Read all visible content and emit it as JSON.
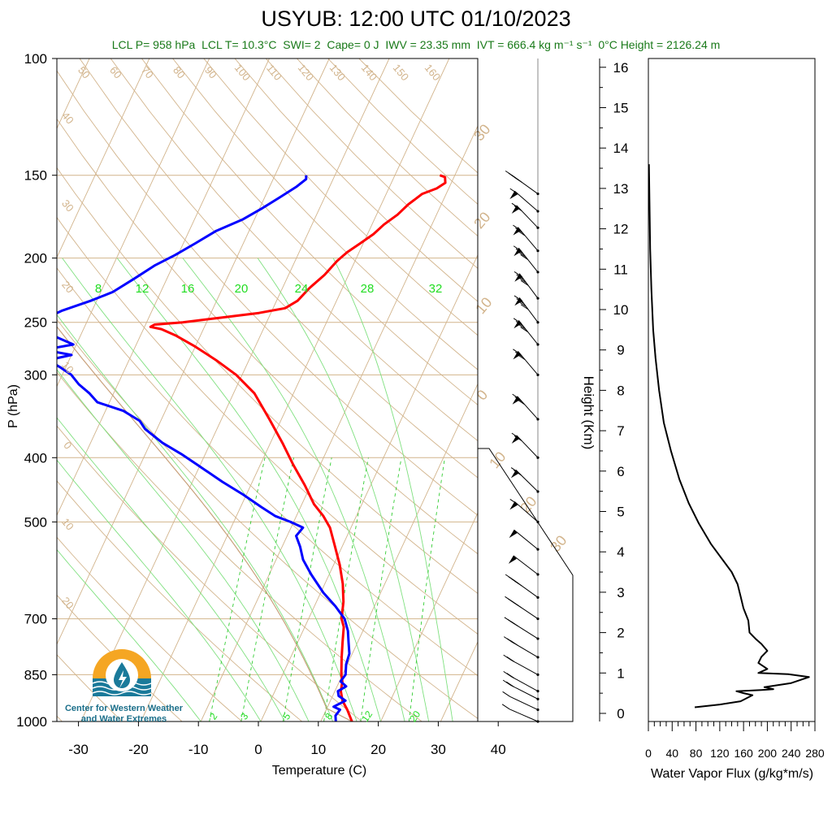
{
  "title": "USYUB: 12:00 UTC 01/10/2023",
  "subtitle": {
    "lcl_p": "LCL P= 958 hPa",
    "lcl_t": "LCL T= 10.3°C",
    "swi": "SWI= 2",
    "cape": "Cape= 0 J",
    "iwv": "IWV = 23.35 mm",
    "ivt": "IVT = 666.4 kg m⁻¹ s⁻¹",
    "zero_height": "0°C Height = 2126.24 m"
  },
  "logo": {
    "line1": "Center for Western Weather",
    "line2": "and Water Extremes",
    "icon": "water-drop-icon"
  },
  "colors": {
    "temperature": "#ff0000",
    "dewpoint": "#0000ff",
    "dry_adiabat": "#d2b48c",
    "moist_adiabat": "#7fe07f",
    "mixing_ratio": "#33cc33",
    "subtitle": "#1a7a1a",
    "parcel": "#c8a07a"
  },
  "chart_data": [
    {
      "type": "line",
      "name": "skew-t",
      "xlabel": "Temperature (C)",
      "ylabel": "P (hPa)",
      "xlim": [
        -35,
        50
      ],
      "ylim": [
        1000,
        100
      ],
      "log_y": true,
      "x_ticks": [
        "-30",
        "-20",
        "-10",
        "0",
        "10",
        "20",
        "30",
        "40"
      ],
      "y_ticks": [
        "100",
        "150",
        "200",
        "250",
        "300",
        "400",
        "500",
        "700",
        "850",
        "1000"
      ],
      "dry_adiabat_labels": [
        "50",
        "60",
        "70",
        "80",
        "90",
        "100",
        "110",
        "120",
        "130",
        "140",
        "150",
        "160"
      ],
      "isotherm_side_labels": [
        "40",
        "30",
        "20",
        "10",
        "0",
        "10",
        "20"
      ],
      "isotherm_right_labels": [
        "30",
        "20",
        "10",
        "0",
        "10",
        "20",
        "30"
      ],
      "mixing_ratio_top_labels": [
        "8",
        "12",
        "16",
        "20",
        "24",
        "28",
        "32"
      ],
      "mixing_ratio_bottom_labels": [
        "2",
        "3",
        "5",
        "8",
        "12",
        "20"
      ],
      "series": [
        {
          "name": "temperature",
          "points": [
            [
              15.2,
              1000
            ],
            [
              13.5,
              960
            ],
            [
              12.0,
              930
            ],
            [
              11.0,
              900
            ],
            [
              10.5,
              870
            ],
            [
              9.8,
              850
            ],
            [
              8.5,
              800
            ],
            [
              7.5,
              760
            ],
            [
              6.5,
              720
            ],
            [
              5.5,
              700
            ],
            [
              4.5,
              660
            ],
            [
              3.0,
              620
            ],
            [
              1.0,
              580
            ],
            [
              -1.5,
              540
            ],
            [
              -3.5,
              510
            ],
            [
              -5.5,
              490
            ],
            [
              -8.0,
              470
            ],
            [
              -11.0,
              440
            ],
            [
              -14.5,
              410
            ],
            [
              -18.0,
              380
            ],
            [
              -22.0,
              350
            ],
            [
              -26.5,
              320
            ],
            [
              -31.0,
              300
            ],
            [
              -35.5,
              285
            ],
            [
              -40.0,
              272
            ],
            [
              -44.0,
              262
            ],
            [
              -47.0,
              256
            ],
            [
              -49.0,
              254
            ],
            [
              -48.5,
              252
            ],
            [
              -44.0,
              250
            ],
            [
              -38.0,
              246
            ],
            [
              -32.0,
              242
            ],
            [
              -28.0,
              238
            ],
            [
              -26.5,
              232
            ],
            [
              -25.5,
              222
            ],
            [
              -24.0,
              212
            ],
            [
              -23.0,
              202
            ],
            [
              -22.0,
              196
            ],
            [
              -20.5,
              190
            ],
            [
              -19.0,
              184
            ],
            [
              -18.0,
              178
            ],
            [
              -16.5,
              172
            ],
            [
              -15.5,
              166
            ],
            [
              -14.0,
              160
            ],
            [
              -12.0,
              157
            ],
            [
              -11.0,
              154
            ],
            [
              -11.5,
              151
            ],
            [
              -12.5,
              150
            ]
          ]
        },
        {
          "name": "dewpoint",
          "points": [
            [
              12.5,
              1000
            ],
            [
              12.0,
              980
            ],
            [
              12.3,
              960
            ],
            [
              11.0,
              950
            ],
            [
              12.5,
              930
            ],
            [
              11.0,
              915
            ],
            [
              10.5,
              900
            ],
            [
              11.5,
              885
            ],
            [
              10.2,
              870
            ],
            [
              10.5,
              850
            ],
            [
              9.8,
              820
            ],
            [
              9.5,
              790
            ],
            [
              8.5,
              760
            ],
            [
              7.5,
              730
            ],
            [
              6.0,
              700
            ],
            [
              3.5,
              670
            ],
            [
              0.5,
              640
            ],
            [
              -3.0,
              600
            ],
            [
              -5.5,
              570
            ],
            [
              -7.0,
              545
            ],
            [
              -8.5,
              525
            ],
            [
              -8.0,
              510
            ],
            [
              -10.5,
              500
            ],
            [
              -13.5,
              490
            ],
            [
              -16.5,
              475
            ],
            [
              -20.5,
              455
            ],
            [
              -25.0,
              435
            ],
            [
              -30.5,
              410
            ],
            [
              -34.0,
              395
            ],
            [
              -38.0,
              380
            ],
            [
              -42.0,
              362
            ],
            [
              -43.5,
              352
            ],
            [
              -47.0,
              340
            ],
            [
              -52.0,
              330
            ],
            [
              -54.0,
              320
            ],
            [
              -56.5,
              310
            ],
            [
              -58.5,
              300
            ],
            [
              -61.0,
              292
            ],
            [
              -63.5,
              285
            ],
            [
              -60.0,
              280
            ],
            [
              -65.0,
              275
            ],
            [
              -60.5,
              270
            ],
            [
              -64.5,
              262
            ],
            [
              -74.0,
              258
            ],
            [
              -72.0,
              252
            ],
            [
              -67.0,
              246
            ],
            [
              -65.0,
              240
            ],
            [
              -61.0,
              232
            ],
            [
              -58.0,
              225
            ],
            [
              -55.5,
              215
            ],
            [
              -53.0,
              205
            ],
            [
              -50.5,
              198
            ],
            [
              -48.0,
              190
            ],
            [
              -45.5,
              182
            ],
            [
              -42.0,
              175
            ],
            [
              -39.5,
              168
            ],
            [
              -37.5,
              162
            ],
            [
              -35.5,
              156
            ],
            [
              -34.5,
              152
            ],
            [
              -34.8,
              150
            ]
          ]
        }
      ]
    },
    {
      "type": "line",
      "name": "water-vapor-flux",
      "xlabel": "Water Vapor Flux (g/kg*m/s)",
      "ylabel": "Height (Km)",
      "xlim": [
        0,
        280
      ],
      "ylim": [
        0,
        16
      ],
      "x_ticks": [
        "0",
        "40",
        "80",
        "120",
        "160",
        "200",
        "240",
        "280"
      ],
      "y_ticks": [
        "0",
        "1",
        "2",
        "3",
        "4",
        "5",
        "6",
        "7",
        "8",
        "9",
        "10",
        "11",
        "12",
        "13",
        "14",
        "15",
        "16"
      ],
      "series": [
        {
          "name": "flux",
          "points": [
            [
              78,
              0.15
            ],
            [
              120,
              0.22
            ],
            [
              155,
              0.3
            ],
            [
              175,
              0.45
            ],
            [
              160,
              0.5
            ],
            [
              148,
              0.55
            ],
            [
              190,
              0.58
            ],
            [
              210,
              0.6
            ],
            [
              195,
              0.65
            ],
            [
              240,
              0.75
            ],
            [
              270,
              0.9
            ],
            [
              235,
              0.97
            ],
            [
              185,
              1.0
            ],
            [
              200,
              1.1
            ],
            [
              185,
              1.25
            ],
            [
              190,
              1.4
            ],
            [
              200,
              1.55
            ],
            [
              190,
              1.72
            ],
            [
              180,
              1.85
            ],
            [
              170,
              2.0
            ],
            [
              168,
              2.3
            ],
            [
              160,
              2.6
            ],
            [
              155,
              2.9
            ],
            [
              150,
              3.2
            ],
            [
              140,
              3.5
            ],
            [
              125,
              3.8
            ],
            [
              105,
              4.2
            ],
            [
              85,
              4.7
            ],
            [
              68,
              5.2
            ],
            [
              52,
              5.8
            ],
            [
              38,
              6.5
            ],
            [
              26,
              7.2
            ],
            [
              18,
              8.0
            ],
            [
              12,
              8.8
            ],
            [
              8,
              9.5
            ],
            [
              5,
              10.5
            ],
            [
              3,
              11.5
            ],
            [
              2,
              12.5
            ],
            [
              1,
              13.6
            ]
          ]
        }
      ]
    },
    {
      "type": "scatter",
      "name": "wind-barbs",
      "x_meaning": "wind speed (kt)",
      "points": [
        [
          10,
          1000
        ],
        [
          15,
          960
        ],
        [
          20,
          925
        ],
        [
          25,
          900
        ],
        [
          25,
          850
        ],
        [
          30,
          800
        ],
        [
          35,
          750
        ],
        [
          40,
          700
        ],
        [
          45,
          650
        ],
        [
          50,
          600
        ],
        [
          55,
          550
        ],
        [
          60,
          500
        ],
        [
          70,
          450
        ],
        [
          75,
          400
        ],
        [
          80,
          350
        ],
        [
          85,
          300
        ],
        [
          90,
          270
        ],
        [
          95,
          250
        ],
        [
          95,
          230
        ],
        [
          90,
          210
        ],
        [
          85,
          195
        ],
        [
          75,
          180
        ],
        [
          60,
          170
        ],
        [
          45,
          160
        ]
      ]
    }
  ]
}
